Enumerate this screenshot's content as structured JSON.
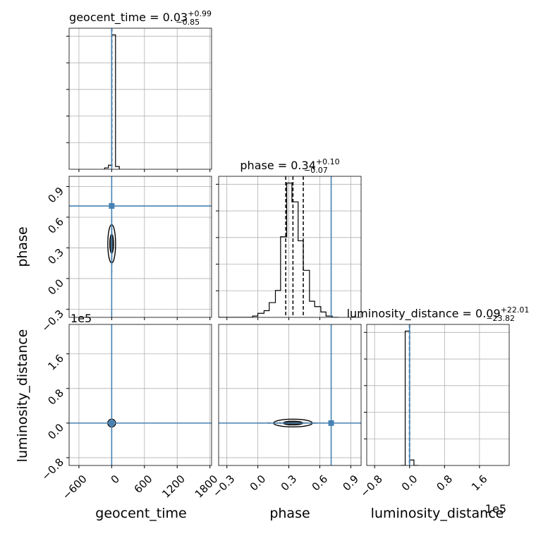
{
  "chart_data": {
    "type": "corner",
    "parameters": [
      "geocent_time",
      "phase",
      "luminosity_distance"
    ],
    "truths": {
      "geocent_time": 0.0,
      "phase": 0.71,
      "luminosity_distance": 0.0
    },
    "titles": [
      {
        "param": "geocent_time",
        "text": "geocent_time = 0.03",
        "plus": "+0.99",
        "minus": "−0.85"
      },
      {
        "param": "phase",
        "text": "phase = 0.34",
        "plus": "+0.10",
        "minus": "−0.07"
      },
      {
        "param": "luminosity_distance",
        "text": "luminosity_distance = 0.09",
        "plus": "+22.01",
        "minus": "−23.82"
      }
    ],
    "axes": {
      "geocent_time": {
        "range": [
          -780,
          1830
        ],
        "ticks": [
          -600,
          0,
          600,
          1200,
          1800
        ],
        "tick_labels": [
          "−600",
          "0",
          "600",
          "1200",
          "1800"
        ]
      },
      "phase": {
        "range": [
          -0.38,
          1.0
        ],
        "ticks": [
          -0.3,
          0.0,
          0.3,
          0.6,
          0.9
        ],
        "tick_labels": [
          "−0.3",
          "0.0",
          "0.3",
          "0.6",
          "0.9"
        ]
      },
      "luminosity_distance": {
        "range": [
          -0.98,
          2.28
        ],
        "ticks": [
          -0.8,
          0.0,
          0.8,
          1.6
        ],
        "tick_labels": [
          "−0.8",
          "0.0",
          "0.8",
          "1.6"
        ],
        "multiplier": "1e5"
      }
    },
    "histograms": {
      "geocent_time": {
        "bins": [
          [
            -130,
            -60,
            0.01
          ],
          [
            -60,
            0,
            0.03
          ],
          [
            0,
            70,
            0.99
          ],
          [
            70,
            140,
            0.02
          ]
        ],
        "quantiles": [
          -0.82,
          0.03,
          1.02
        ]
      },
      "phase": {
        "bins": [
          [
            -0.38,
            -0.34,
            0.0
          ],
          [
            -0.34,
            -0.28,
            0.0
          ],
          [
            -0.28,
            -0.22,
            0.0
          ],
          [
            -0.22,
            -0.16,
            0.0
          ],
          [
            -0.16,
            -0.1,
            0.0
          ],
          [
            -0.1,
            -0.05,
            0.0
          ],
          [
            -0.05,
            0.0,
            0.01
          ],
          [
            0.0,
            0.06,
            0.03
          ],
          [
            0.06,
            0.11,
            0.05
          ],
          [
            0.11,
            0.17,
            0.11
          ],
          [
            0.17,
            0.22,
            0.2
          ],
          [
            0.22,
            0.28,
            0.6
          ],
          [
            0.28,
            0.33,
            1.0
          ],
          [
            0.33,
            0.39,
            0.86
          ],
          [
            0.39,
            0.44,
            0.57
          ],
          [
            0.44,
            0.5,
            0.35
          ],
          [
            0.5,
            0.55,
            0.12
          ],
          [
            0.55,
            0.61,
            0.08
          ],
          [
            0.61,
            0.66,
            0.04
          ],
          [
            0.66,
            0.72,
            0.01
          ],
          [
            0.72,
            0.78,
            0.0
          ]
        ],
        "quantiles": [
          0.27,
          0.34,
          0.44
        ]
      },
      "luminosity_distance": {
        "bins": [
          [
            -0.2,
            -0.1,
            0.0
          ],
          [
            -0.1,
            0.0,
            0.98
          ],
          [
            0.0,
            0.1,
            0.04
          ],
          [
            0.1,
            0.2,
            0.0
          ]
        ],
        "quantiles": [
          -0.0024,
          0.0009,
          0.0022
        ]
      }
    }
  }
}
